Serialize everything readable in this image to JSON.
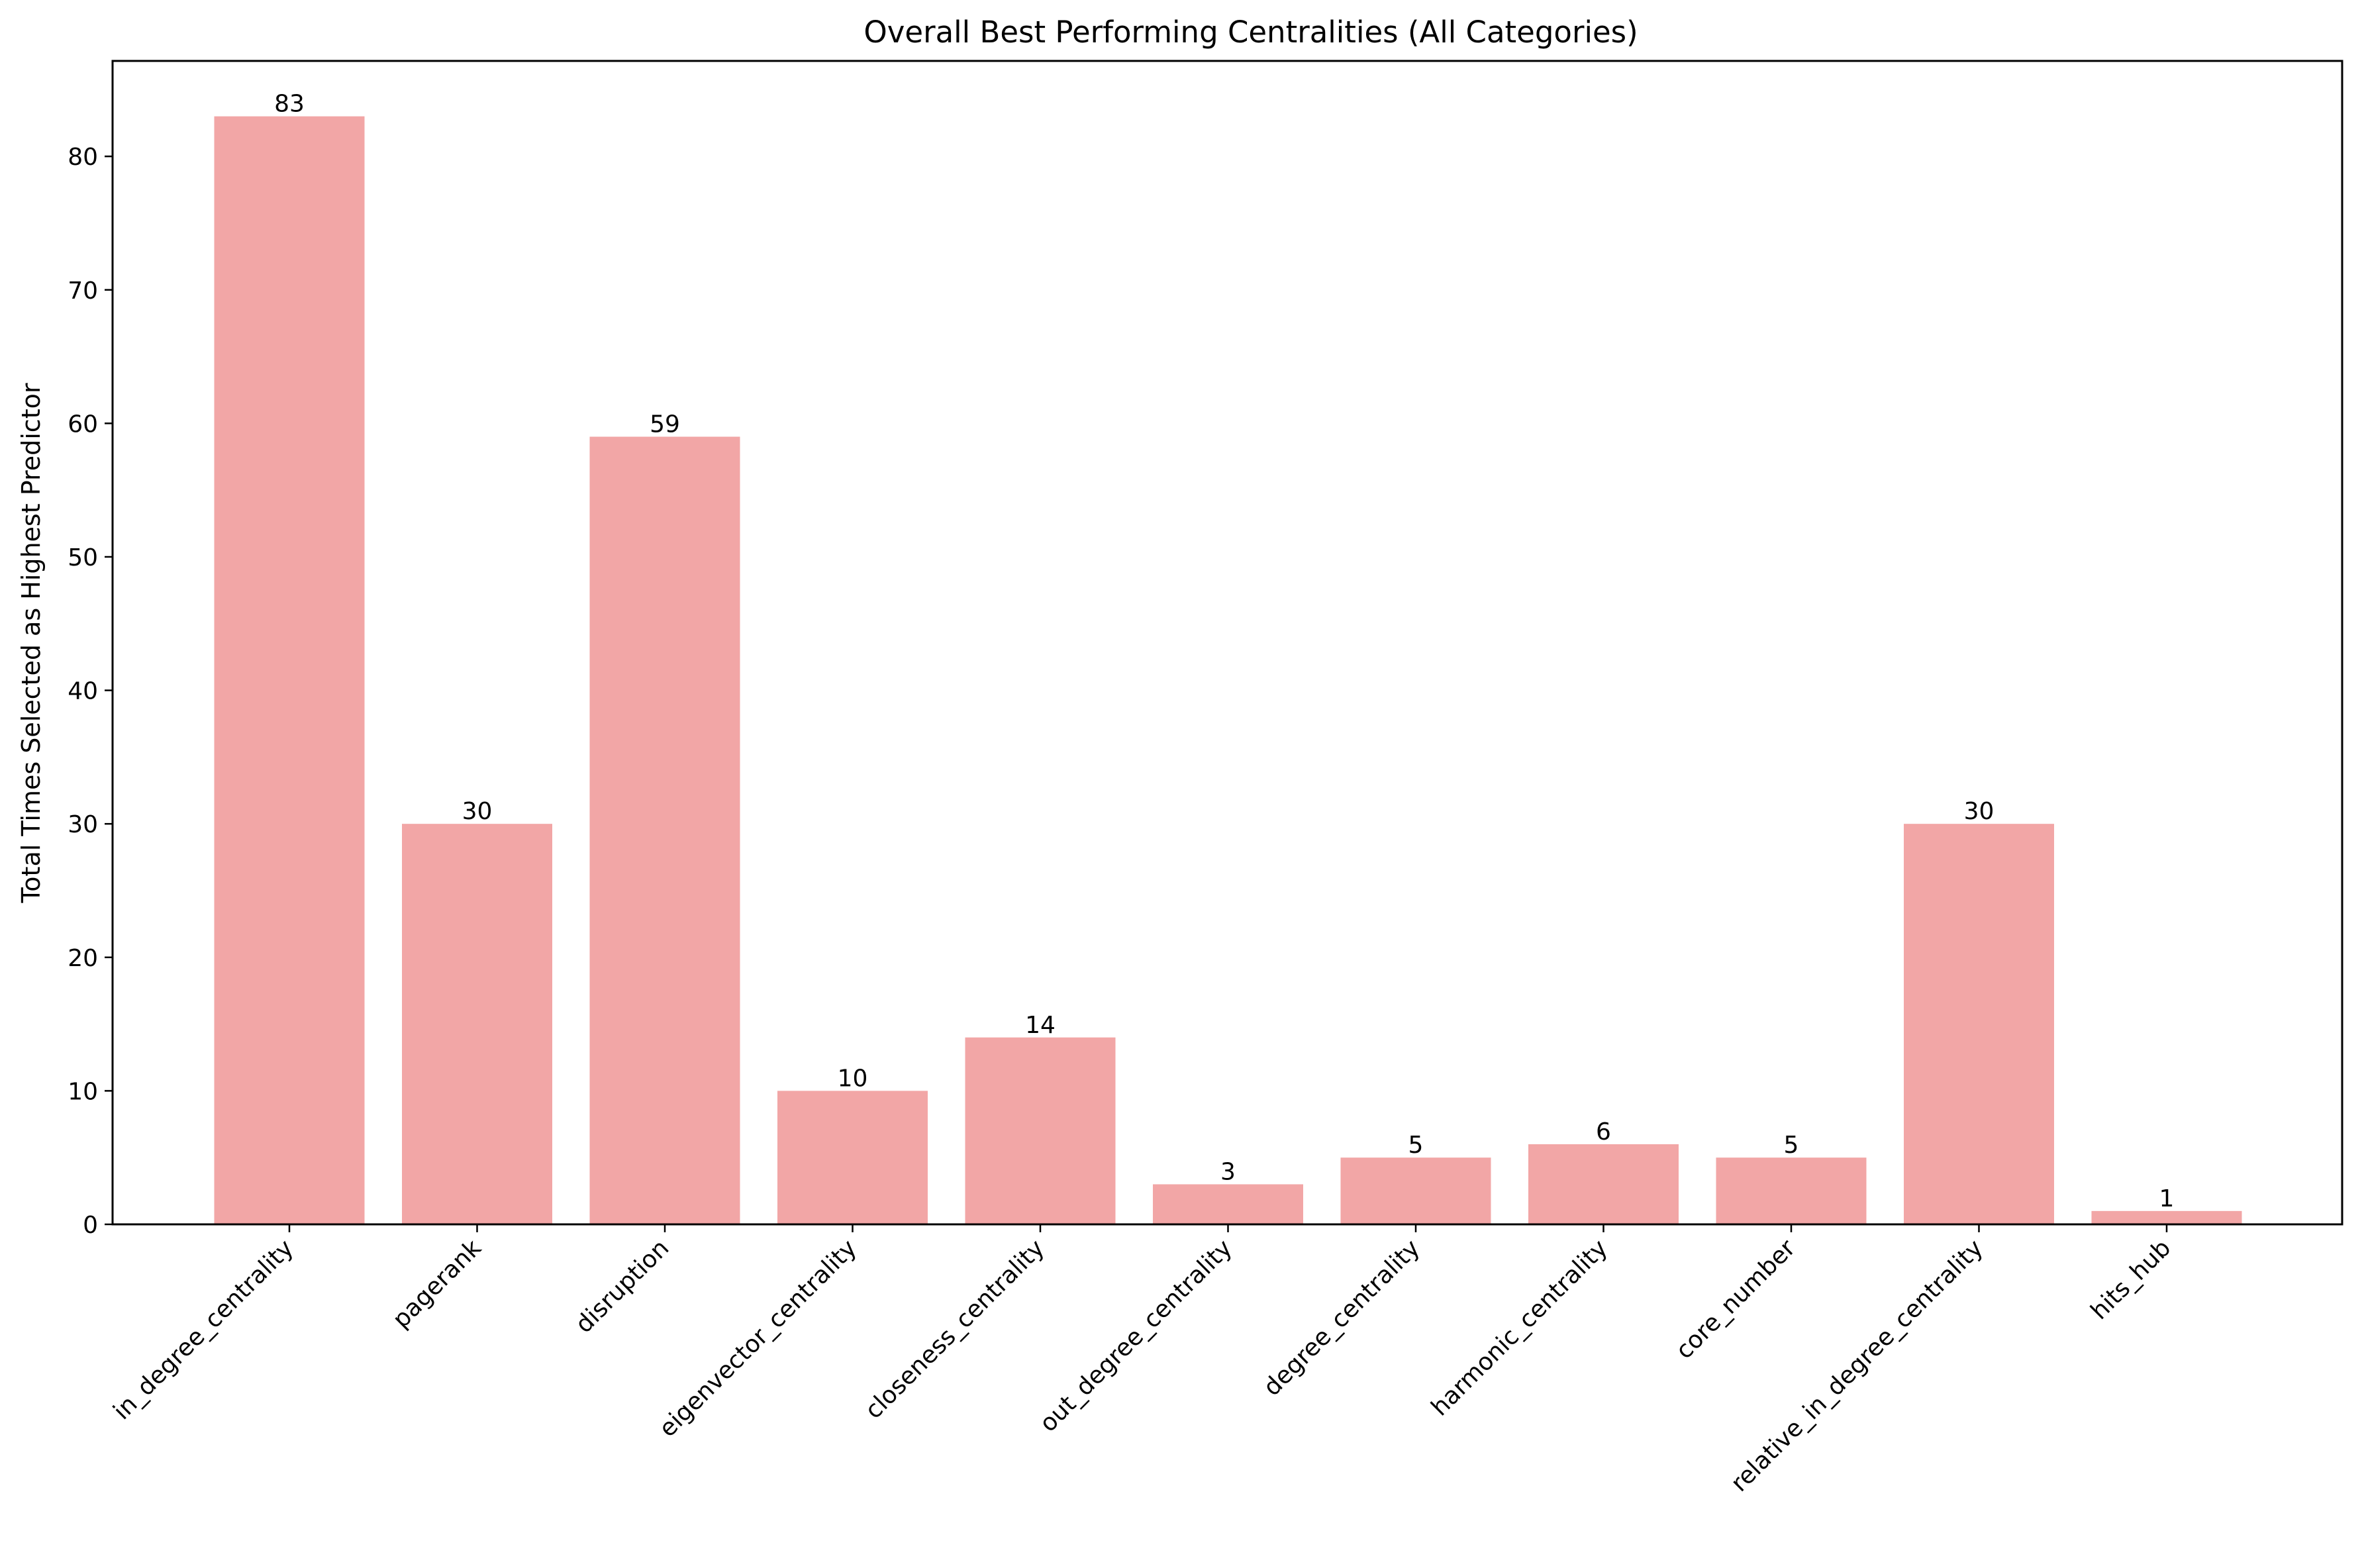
{
  "chart_data": {
    "type": "bar",
    "title": "Overall Best Performing Centralities (All Categories)",
    "xlabel": "",
    "ylabel": "Total Times Selected as Highest Predictor",
    "categories": [
      "in_degree_centrality",
      "pagerank",
      "disruption",
      "eigenvector_centrality",
      "closeness_centrality",
      "out_degree_centrality",
      "degree_centrality",
      "harmonic_centrality",
      "core_number",
      "relative_in_degree_centrality",
      "hits_hub"
    ],
    "values": [
      83,
      30,
      59,
      10,
      14,
      3,
      5,
      6,
      5,
      30,
      1
    ],
    "data_labels": [
      "83",
      "30",
      "59",
      "10",
      "14",
      "3",
      "5",
      "6",
      "5",
      "30",
      "1"
    ],
    "ylim": [
      0,
      87.15
    ],
    "yticks": [
      0,
      10,
      20,
      30,
      40,
      50,
      60,
      70,
      80
    ],
    "ytick_labels": [
      "0",
      "10",
      "20",
      "30",
      "40",
      "50",
      "60",
      "70",
      "80"
    ],
    "bar_color": "#f2a6a6",
    "grid": false,
    "legend": "none",
    "x_tick_rotation_deg": 45
  }
}
